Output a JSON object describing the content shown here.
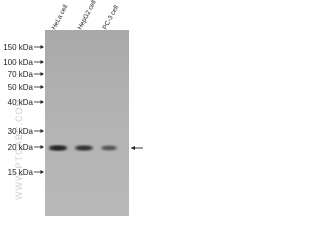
{
  "lanes": [
    "HeLa cell",
    "HepG2 cell",
    "PC-3 cell"
  ],
  "markers": [
    "150 kDa",
    "100 kDa",
    "70 kDa",
    "50 kDa",
    "40 kDa",
    "30 kDa",
    "20 kDa",
    "15 kDa"
  ],
  "watermark": "WWW.PTGABC.COM"
}
